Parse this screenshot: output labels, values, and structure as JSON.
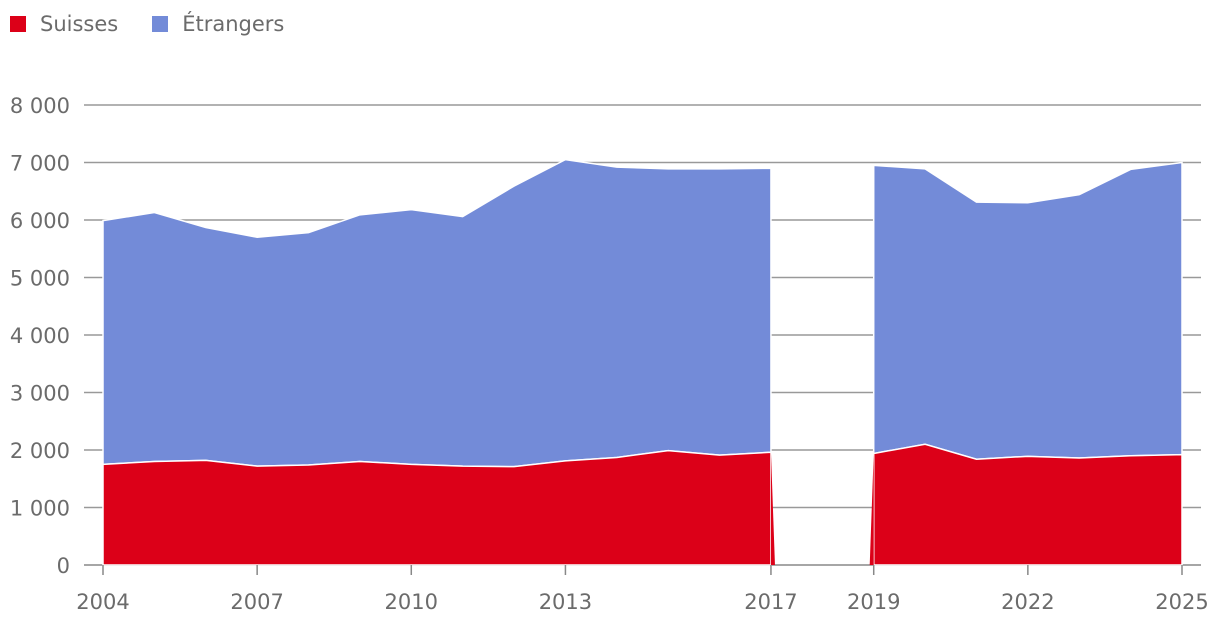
{
  "chart_data": {
    "type": "area",
    "stacked": true,
    "legend_position": "top-left",
    "grid": true,
    "ylim": [
      0,
      8000
    ],
    "y_ticks": [
      {
        "value": 0,
        "label": "0"
      },
      {
        "value": 1000,
        "label": "1 000"
      },
      {
        "value": 2000,
        "label": "2 000"
      },
      {
        "value": 3000,
        "label": "3 000"
      },
      {
        "value": 4000,
        "label": "4 000"
      },
      {
        "value": 5000,
        "label": "5 000"
      },
      {
        "value": 6000,
        "label": "6 000"
      },
      {
        "value": 7000,
        "label": "7 000"
      },
      {
        "value": 8000,
        "label": "8 000"
      }
    ],
    "x_ticks": [
      2004,
      2007,
      2010,
      2013,
      2017,
      2019,
      2022,
      2025
    ],
    "xlim": [
      2004,
      2025
    ],
    "segments": [
      {
        "x": [
          2004,
          2005,
          2006,
          2007,
          2008,
          2009,
          2010,
          2011,
          2012,
          2013,
          2014,
          2015,
          2016,
          2017
        ],
        "suisses": [
          1750,
          1800,
          1820,
          1720,
          1740,
          1800,
          1750,
          1720,
          1710,
          1810,
          1870,
          1990,
          1910,
          1960
        ],
        "etrangers": [
          4240,
          4330,
          4050,
          3980,
          4040,
          4290,
          4430,
          4340,
          4880,
          5240,
          5050,
          4900,
          4980,
          4940
        ]
      },
      {
        "x": [
          2019,
          2020,
          2021,
          2022,
          2023,
          2024,
          2025
        ],
        "suisses": [
          1940,
          2100,
          1840,
          1890,
          1860,
          1900,
          1920
        ],
        "etrangers": [
          5010,
          4790,
          4470,
          4410,
          4580,
          4980,
          5080
        ]
      }
    ],
    "series": [
      {
        "name": "Suisses",
        "key": "suisses",
        "color": "#dc0018"
      },
      {
        "name": "Étrangers",
        "key": "etrangers",
        "color": "#738bd8"
      }
    ]
  },
  "legend": {
    "items": [
      {
        "label": "Suisses",
        "color": "#dc0018"
      },
      {
        "label": "Étrangers",
        "color": "#738bd8"
      }
    ]
  }
}
